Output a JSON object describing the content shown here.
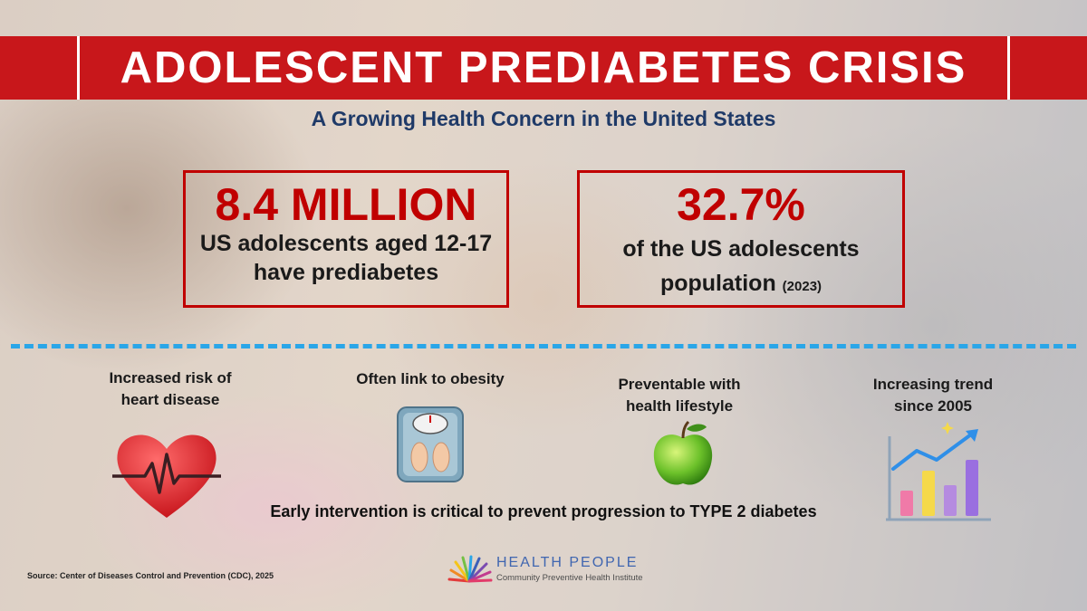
{
  "header": {
    "title": "ADOLESCENT PREDIABETES CRISIS",
    "subtitle": "A Growing Health Concern in the United States"
  },
  "stats": [
    {
      "value": "8.4 MILLION",
      "line1": "US adolescents aged 12-17",
      "line2": "have prediabetes"
    },
    {
      "value": "32.7%",
      "line1": "of the US adolescents",
      "line2": "population",
      "note": "(2023)"
    }
  ],
  "features": [
    {
      "line1": "Increased risk of",
      "line2": "heart disease",
      "icon": "heart-pulse-icon"
    },
    {
      "line1": "Often link to obesity",
      "line2": "",
      "icon": "bathroom-scale-icon"
    },
    {
      "line1": "Preventable with",
      "line2": "health lifestyle",
      "icon": "green-apple-icon"
    },
    {
      "line1": "Increasing trend",
      "line2": "since 2005",
      "icon": "rising-bar-chart-icon"
    }
  ],
  "callout": "Early intervention is critical to prevent progression to TYPE 2 diabetes",
  "source": "Source: Center of Diseases Control and Prevention (CDC), 2025",
  "brand": {
    "name": "HEALTH PEOPLE",
    "tagline": "Community Preventive Health Institute"
  },
  "colors": {
    "banner": "#c8171b",
    "accent_red": "#c00000",
    "subtitle_blue": "#1f3a68",
    "divider": "#2aa6e8",
    "brand_blue": "#4066b0"
  }
}
